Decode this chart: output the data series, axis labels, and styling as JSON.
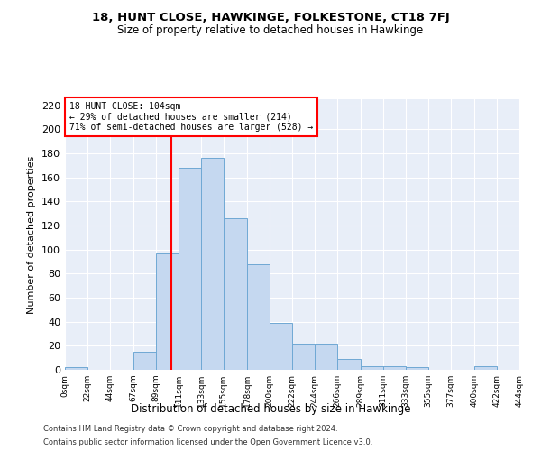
{
  "title": "18, HUNT CLOSE, HAWKINGE, FOLKESTONE, CT18 7FJ",
  "subtitle": "Size of property relative to detached houses in Hawkinge",
  "xlabel": "Distribution of detached houses by size in Hawkinge",
  "ylabel": "Number of detached properties",
  "annotation_line1": "18 HUNT CLOSE: 104sqm",
  "annotation_line2": "← 29% of detached houses are smaller (214)",
  "annotation_line3": "71% of semi-detached houses are larger (528) →",
  "property_size": 104,
  "bar_color": "#c5d8f0",
  "bar_edge_color": "#6fa8d4",
  "vline_color": "red",
  "background_color": "#e8eef8",
  "bin_edges": [
    0,
    22,
    44,
    67,
    89,
    111,
    133,
    155,
    178,
    200,
    222,
    244,
    266,
    289,
    311,
    333,
    355,
    377,
    400,
    422,
    444
  ],
  "bar_heights": [
    2,
    0,
    0,
    15,
    97,
    168,
    176,
    126,
    88,
    39,
    22,
    22,
    9,
    3,
    3,
    2,
    0,
    0,
    3,
    0
  ],
  "ylim": [
    0,
    225
  ],
  "yticks": [
    0,
    20,
    40,
    60,
    80,
    100,
    120,
    140,
    160,
    180,
    200,
    220
  ],
  "footer_line1": "Contains HM Land Registry data © Crown copyright and database right 2024.",
  "footer_line2": "Contains public sector information licensed under the Open Government Licence v3.0."
}
